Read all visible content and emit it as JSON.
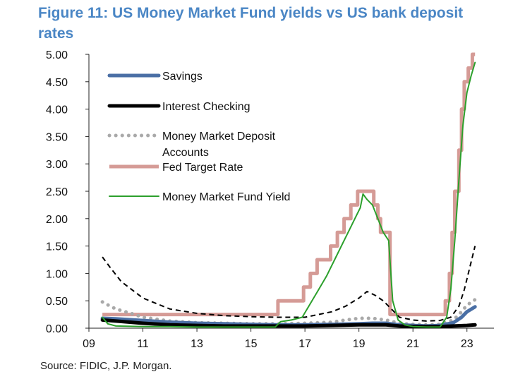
{
  "title": "Figure 11: US Money Market Fund yields vs US bank deposit rates",
  "source": "Source: FIDIC, J.P. Morgan.",
  "chart_data": {
    "type": "line",
    "title": "Figure 11: US Money Market Fund yields vs US bank deposit rates",
    "xlabel": "",
    "ylabel": "",
    "xlim": [
      2009.0,
      2024.0
    ],
    "ylim": [
      0,
      5.0
    ],
    "grid": false,
    "legend_position": "top-left",
    "x_ticks": [
      {
        "value": 2009,
        "label": "09"
      },
      {
        "value": 2011,
        "label": "11"
      },
      {
        "value": 2013,
        "label": "13"
      },
      {
        "value": 2015,
        "label": "15"
      },
      {
        "value": 2017,
        "label": "17"
      },
      {
        "value": 2019,
        "label": "19"
      },
      {
        "value": 2021,
        "label": "21"
      },
      {
        "value": 2023,
        "label": "23"
      }
    ],
    "y_ticks": [
      "0.00",
      "0.50",
      "1.00",
      "1.50",
      "2.00",
      "2.50",
      "3.00",
      "3.50",
      "4.00",
      "4.50",
      "5.00"
    ],
    "series": [
      {
        "name": "Savings",
        "color": "#4a6fa5",
        "style": "solid-thick",
        "points": [
          [
            2009.5,
            0.18
          ],
          [
            2010,
            0.17
          ],
          [
            2011,
            0.14
          ],
          [
            2012,
            0.11
          ],
          [
            2013,
            0.09
          ],
          [
            2014,
            0.08
          ],
          [
            2015,
            0.07
          ],
          [
            2016,
            0.06
          ],
          [
            2017,
            0.06
          ],
          [
            2018,
            0.07
          ],
          [
            2019,
            0.08
          ],
          [
            2019.5,
            0.09
          ],
          [
            2020,
            0.09
          ],
          [
            2020.5,
            0.06
          ],
          [
            2021,
            0.05
          ],
          [
            2021.5,
            0.04
          ],
          [
            2022,
            0.05
          ],
          [
            2022.5,
            0.1
          ],
          [
            2022.8,
            0.2
          ],
          [
            2023,
            0.3
          ],
          [
            2023.3,
            0.39
          ]
        ]
      },
      {
        "name": "Interest Checking",
        "color": "#000000",
        "style": "solid-thick",
        "points": [
          [
            2009.5,
            0.15
          ],
          [
            2010,
            0.13
          ],
          [
            2011,
            0.09
          ],
          [
            2012,
            0.06
          ],
          [
            2013,
            0.05
          ],
          [
            2014,
            0.04
          ],
          [
            2015,
            0.04
          ],
          [
            2016,
            0.04
          ],
          [
            2017,
            0.04
          ],
          [
            2018,
            0.05
          ],
          [
            2019,
            0.06
          ],
          [
            2020,
            0.06
          ],
          [
            2020.5,
            0.04
          ],
          [
            2021,
            0.03
          ],
          [
            2022,
            0.03
          ],
          [
            2022.5,
            0.04
          ],
          [
            2023,
            0.05
          ],
          [
            2023.3,
            0.06
          ]
        ]
      },
      {
        "name": "Money Market Deposit Accounts",
        "color": "#a9a9a9",
        "style": "dotted",
        "points": [
          [
            2009.5,
            0.48
          ],
          [
            2009.8,
            0.4
          ],
          [
            2010,
            0.35
          ],
          [
            2010.5,
            0.28
          ],
          [
            2011,
            0.2
          ],
          [
            2012,
            0.13
          ],
          [
            2013,
            0.1
          ],
          [
            2014,
            0.09
          ],
          [
            2015,
            0.08
          ],
          [
            2016,
            0.08
          ],
          [
            2017,
            0.09
          ],
          [
            2018,
            0.11
          ],
          [
            2018.5,
            0.15
          ],
          [
            2019,
            0.18
          ],
          [
            2019.5,
            0.18
          ],
          [
            2020,
            0.15
          ],
          [
            2020.5,
            0.09
          ],
          [
            2021,
            0.07
          ],
          [
            2021.5,
            0.06
          ],
          [
            2022,
            0.07
          ],
          [
            2022.5,
            0.15
          ],
          [
            2022.8,
            0.3
          ],
          [
            2023,
            0.42
          ],
          [
            2023.3,
            0.52
          ]
        ]
      },
      {
        "name": "Fed Target Rate",
        "color": "#d59b96",
        "style": "step",
        "points": [
          [
            2009.5,
            0.25
          ],
          [
            2016.0,
            0.25
          ],
          [
            2016.0,
            0.5
          ],
          [
            2016.95,
            0.5
          ],
          [
            2016.95,
            0.75
          ],
          [
            2017.2,
            0.75
          ],
          [
            2017.2,
            1.0
          ],
          [
            2017.45,
            1.0
          ],
          [
            2017.45,
            1.25
          ],
          [
            2017.95,
            1.25
          ],
          [
            2017.95,
            1.5
          ],
          [
            2018.2,
            1.5
          ],
          [
            2018.2,
            1.75
          ],
          [
            2018.45,
            1.75
          ],
          [
            2018.45,
            2.0
          ],
          [
            2018.7,
            2.0
          ],
          [
            2018.7,
            2.25
          ],
          [
            2018.95,
            2.25
          ],
          [
            2018.95,
            2.5
          ],
          [
            2019.55,
            2.5
          ],
          [
            2019.55,
            2.25
          ],
          [
            2019.7,
            2.25
          ],
          [
            2019.7,
            2.0
          ],
          [
            2019.8,
            2.0
          ],
          [
            2019.8,
            1.75
          ],
          [
            2020.15,
            1.75
          ],
          [
            2020.15,
            0.25
          ],
          [
            2022.2,
            0.25
          ],
          [
            2022.2,
            0.5
          ],
          [
            2022.35,
            0.5
          ],
          [
            2022.35,
            1.0
          ],
          [
            2022.45,
            1.0
          ],
          [
            2022.45,
            1.75
          ],
          [
            2022.55,
            1.75
          ],
          [
            2022.55,
            2.5
          ],
          [
            2022.7,
            2.5
          ],
          [
            2022.7,
            3.25
          ],
          [
            2022.8,
            3.25
          ],
          [
            2022.8,
            4.0
          ],
          [
            2022.9,
            4.0
          ],
          [
            2022.9,
            4.5
          ],
          [
            2023.05,
            4.5
          ],
          [
            2023.05,
            4.75
          ],
          [
            2023.2,
            4.75
          ],
          [
            2023.2,
            5.0
          ],
          [
            2023.3,
            5.0
          ]
        ]
      },
      {
        "name": "Money Market Fund Yield",
        "color": "#2ca02c",
        "style": "solid",
        "points": [
          [
            2009.5,
            0.2
          ],
          [
            2009.7,
            0.08
          ],
          [
            2010,
            0.04
          ],
          [
            2011,
            0.03
          ],
          [
            2012,
            0.03
          ],
          [
            2013,
            0.02
          ],
          [
            2014,
            0.02
          ],
          [
            2015,
            0.02
          ],
          [
            2015.9,
            0.02
          ],
          [
            2016.1,
            0.12
          ],
          [
            2016.5,
            0.15
          ],
          [
            2016.9,
            0.2
          ],
          [
            2017.2,
            0.45
          ],
          [
            2017.5,
            0.7
          ],
          [
            2017.8,
            0.95
          ],
          [
            2018.1,
            1.25
          ],
          [
            2018.4,
            1.55
          ],
          [
            2018.7,
            1.85
          ],
          [
            2018.9,
            2.05
          ],
          [
            2019.05,
            2.2
          ],
          [
            2019.15,
            2.45
          ],
          [
            2019.3,
            2.35
          ],
          [
            2019.5,
            2.25
          ],
          [
            2019.7,
            2.0
          ],
          [
            2019.9,
            1.75
          ],
          [
            2020.1,
            1.6
          ],
          [
            2020.25,
            0.5
          ],
          [
            2020.45,
            0.15
          ],
          [
            2020.7,
            0.06
          ],
          [
            2021,
            0.03
          ],
          [
            2021.5,
            0.02
          ],
          [
            2022,
            0.02
          ],
          [
            2022.25,
            0.2
          ],
          [
            2022.4,
            0.7
          ],
          [
            2022.55,
            1.6
          ],
          [
            2022.7,
            2.7
          ],
          [
            2022.85,
            3.7
          ],
          [
            2023.0,
            4.3
          ],
          [
            2023.15,
            4.6
          ],
          [
            2023.3,
            4.85
          ]
        ]
      },
      {
        "name": "",
        "color": "#000000",
        "style": "dashed",
        "points": [
          [
            2009.5,
            1.3
          ],
          [
            2009.8,
            1.1
          ],
          [
            2010.2,
            0.85
          ],
          [
            2010.6,
            0.7
          ],
          [
            2011,
            0.55
          ],
          [
            2011.5,
            0.45
          ],
          [
            2012,
            0.35
          ],
          [
            2013,
            0.27
          ],
          [
            2014,
            0.23
          ],
          [
            2015,
            0.21
          ],
          [
            2016,
            0.2
          ],
          [
            2017,
            0.2
          ],
          [
            2017.5,
            0.25
          ],
          [
            2018,
            0.3
          ],
          [
            2018.5,
            0.4
          ],
          [
            2019,
            0.55
          ],
          [
            2019.3,
            0.67
          ],
          [
            2019.6,
            0.6
          ],
          [
            2019.9,
            0.5
          ],
          [
            2020.2,
            0.35
          ],
          [
            2020.5,
            0.2
          ],
          [
            2021,
            0.15
          ],
          [
            2021.5,
            0.13
          ],
          [
            2022,
            0.14
          ],
          [
            2022.4,
            0.2
          ],
          [
            2022.7,
            0.4
          ],
          [
            2022.9,
            0.7
          ],
          [
            2023.1,
            1.1
          ],
          [
            2023.3,
            1.5
          ]
        ]
      }
    ]
  }
}
